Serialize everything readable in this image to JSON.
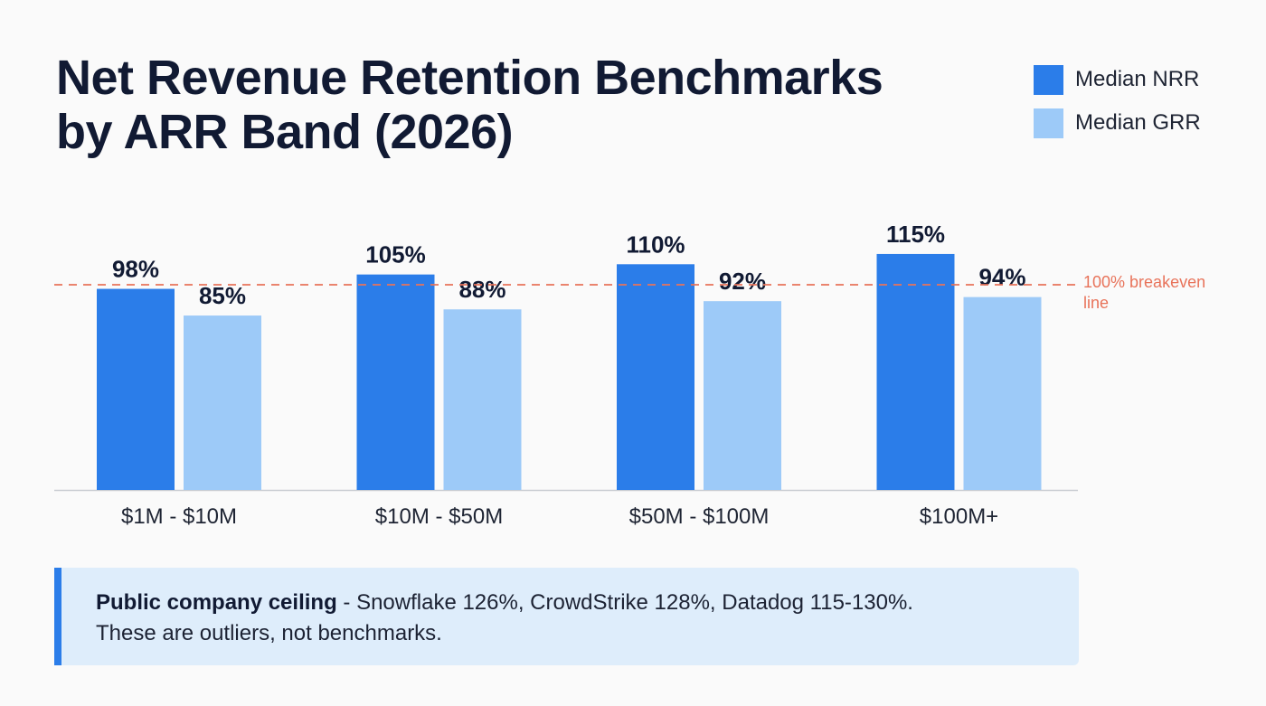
{
  "title": {
    "line1": "Net Revenue Retention Benchmarks",
    "line2": "by ARR Band (2026)"
  },
  "legend": [
    {
      "label": "Median NRR",
      "color": "#2b7de9"
    },
    {
      "label": "Median GRR",
      "color": "#9dcaf8"
    }
  ],
  "chart_data": {
    "type": "bar",
    "title": "Net Revenue Retention Benchmarks by ARR Band (2026)",
    "categories": [
      "$1M - $10M",
      "$10M - $50M",
      "$50M - $100M",
      "$100M+"
    ],
    "series": [
      {
        "name": "Median NRR",
        "values": [
          98,
          105,
          110,
          115
        ],
        "labels": [
          "98%",
          "105%",
          "110%",
          "115%"
        ],
        "color": "#2b7de9"
      },
      {
        "name": "Median GRR",
        "values": [
          85,
          88,
          92,
          94
        ],
        "labels": [
          "85%",
          "88%",
          "92%",
          "94%"
        ],
        "color": "#9dcaf8"
      }
    ],
    "reference_line": {
      "value": 100,
      "label_line1": "100% breakeven",
      "label_line2": "line",
      "color": "#e8735a"
    },
    "xlabel": "",
    "ylabel": "",
    "grid": false
  },
  "callout": {
    "bold": "Public company ceiling",
    "text_line1": " - Snowflake 126%, CrowdStrike 128%, Datadog 115-130%.",
    "text_line2": "These are outliers, not benchmarks."
  }
}
